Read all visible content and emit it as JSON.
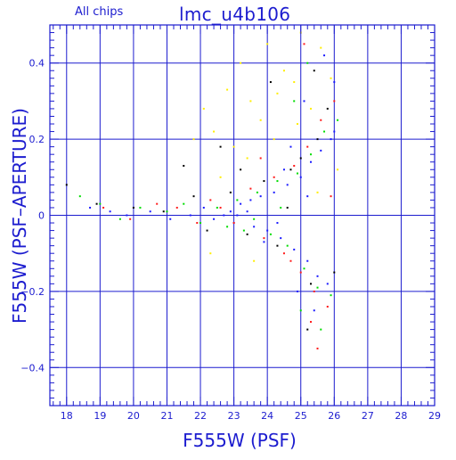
{
  "chart_data": {
    "type": "scatter",
    "title": "lmc_u4b106",
    "subtitle": "All chips",
    "xlabel": "F555W (PSF)",
    "ylabel": "F555W (PSF–APERTURE)",
    "xlim": [
      17.5,
      29.0
    ],
    "ylim": [
      -0.5,
      0.5
    ],
    "x_ticks": [
      18,
      19,
      20,
      21,
      22,
      23,
      24,
      25,
      26,
      27,
      28,
      29
    ],
    "x_tick_labels": [
      "18",
      "19",
      "20",
      "21",
      "22",
      "23",
      "24",
      "25",
      "26",
      "27",
      "28",
      "29"
    ],
    "y_ticks": [
      -0.4,
      -0.2,
      0,
      0.2,
      0.4
    ],
    "y_tick_labels": [
      "−0.4",
      "−0.2",
      "0",
      "0.2",
      "0.4"
    ],
    "grid": true,
    "legend": "none",
    "colors": {
      "axes": "#1c1ccf",
      "text": "#1c1ccf",
      "series": [
        "#1a1aff",
        "#00dd00",
        "#ff1a1a",
        "#000000",
        "#ffee00"
      ]
    },
    "series": [
      {
        "color": "#1a1aff",
        "points": [
          [
            18.7,
            0.02
          ],
          [
            19.3,
            0.01
          ],
          [
            19.8,
            0.0
          ],
          [
            20.5,
            0.01
          ],
          [
            21.1,
            -0.01
          ],
          [
            21.7,
            0.0
          ],
          [
            22.1,
            0.02
          ],
          [
            22.4,
            -0.01
          ],
          [
            22.7,
            0.0
          ],
          [
            23.0,
            -0.02
          ],
          [
            23.2,
            0.03
          ],
          [
            23.4,
            0.01
          ],
          [
            23.6,
            -0.03
          ],
          [
            23.8,
            0.05
          ],
          [
            24.0,
            -0.04
          ],
          [
            24.2,
            0.06
          ],
          [
            24.4,
            -0.06
          ],
          [
            24.6,
            0.08
          ],
          [
            24.8,
            -0.09
          ],
          [
            25.0,
            0.1
          ],
          [
            25.2,
            -0.12
          ],
          [
            25.3,
            0.14
          ],
          [
            25.5,
            -0.16
          ],
          [
            25.6,
            0.17
          ],
          [
            25.8,
            -0.18
          ],
          [
            25.9,
            0.2
          ],
          [
            26.0,
            0.22
          ],
          [
            25.1,
            0.3
          ],
          [
            24.9,
            -0.2
          ],
          [
            24.5,
            0.12
          ],
          [
            25.4,
            -0.25
          ],
          [
            23.9,
            -0.07
          ],
          [
            23.5,
            0.04
          ],
          [
            22.9,
            0.01
          ],
          [
            26.0,
            0.35
          ],
          [
            25.7,
            0.42
          ],
          [
            24.7,
            0.18
          ],
          [
            25.2,
            0.05
          ],
          [
            24.3,
            -0.02
          ],
          [
            23.1,
            0.0
          ]
        ]
      },
      {
        "color": "#00dd00",
        "points": [
          [
            18.4,
            0.05
          ],
          [
            19.0,
            0.03
          ],
          [
            19.6,
            -0.01
          ],
          [
            20.2,
            0.02
          ],
          [
            21.0,
            0.01
          ],
          [
            21.5,
            0.03
          ],
          [
            22.0,
            -0.02
          ],
          [
            22.5,
            0.02
          ],
          [
            22.8,
            -0.03
          ],
          [
            23.1,
            0.04
          ],
          [
            23.3,
            -0.04
          ],
          [
            23.7,
            0.06
          ],
          [
            24.1,
            -0.05
          ],
          [
            24.3,
            0.09
          ],
          [
            24.6,
            -0.08
          ],
          [
            24.9,
            0.11
          ],
          [
            25.1,
            -0.14
          ],
          [
            25.3,
            0.16
          ],
          [
            25.5,
            -0.19
          ],
          [
            25.7,
            0.22
          ],
          [
            25.9,
            -0.21
          ],
          [
            26.1,
            0.25
          ],
          [
            25.2,
            0.4
          ],
          [
            24.8,
            0.3
          ],
          [
            25.6,
            -0.3
          ],
          [
            25.0,
            -0.25
          ],
          [
            24.4,
            0.02
          ],
          [
            23.6,
            -0.01
          ]
        ]
      },
      {
        "color": "#ff1a1a",
        "points": [
          [
            19.1,
            0.02
          ],
          [
            19.9,
            -0.01
          ],
          [
            20.7,
            0.03
          ],
          [
            21.3,
            0.02
          ],
          [
            21.9,
            -0.02
          ],
          [
            22.3,
            0.04
          ],
          [
            22.6,
            0.02
          ],
          [
            23.0,
            -0.02
          ],
          [
            23.5,
            0.07
          ],
          [
            23.9,
            -0.06
          ],
          [
            24.2,
            0.1
          ],
          [
            24.5,
            -0.1
          ],
          [
            24.8,
            0.13
          ],
          [
            25.0,
            -0.15
          ],
          [
            25.2,
            0.18
          ],
          [
            25.4,
            -0.2
          ],
          [
            25.6,
            0.25
          ],
          [
            25.8,
            -0.24
          ],
          [
            26.0,
            0.3
          ],
          [
            25.3,
            -0.28
          ],
          [
            25.1,
            0.45
          ],
          [
            24.7,
            -0.12
          ],
          [
            23.8,
            0.15
          ],
          [
            25.9,
            0.05
          ],
          [
            25.5,
            -0.35
          ]
        ]
      },
      {
        "color": "#000000",
        "points": [
          [
            18.0,
            0.08
          ],
          [
            18.9,
            0.03
          ],
          [
            20.0,
            0.02
          ],
          [
            20.9,
            0.01
          ],
          [
            21.8,
            0.05
          ],
          [
            22.2,
            -0.04
          ],
          [
            22.9,
            0.06
          ],
          [
            23.4,
            -0.05
          ],
          [
            23.9,
            0.09
          ],
          [
            24.3,
            -0.08
          ],
          [
            24.7,
            0.12
          ],
          [
            25.0,
            0.15
          ],
          [
            25.3,
            -0.18
          ],
          [
            25.5,
            0.2
          ],
          [
            25.8,
            0.28
          ],
          [
            26.0,
            -0.15
          ],
          [
            24.1,
            0.35
          ],
          [
            25.4,
            0.38
          ],
          [
            25.2,
            -0.3
          ],
          [
            24.6,
            0.02
          ],
          [
            23.2,
            0.12
          ],
          [
            22.6,
            0.18
          ],
          [
            21.5,
            0.13
          ]
        ]
      },
      {
        "color": "#ffee00",
        "points": [
          [
            22.1,
            0.28
          ],
          [
            22.4,
            0.22
          ],
          [
            22.8,
            0.33
          ],
          [
            23.0,
            0.18
          ],
          [
            23.2,
            0.4
          ],
          [
            23.5,
            0.3
          ],
          [
            23.8,
            0.25
          ],
          [
            24.0,
            0.45
          ],
          [
            24.2,
            0.2
          ],
          [
            24.5,
            0.38
          ],
          [
            24.8,
            0.35
          ],
          [
            25.0,
            0.48
          ],
          [
            25.3,
            0.28
          ],
          [
            25.6,
            0.44
          ],
          [
            25.9,
            0.36
          ],
          [
            26.1,
            0.12
          ],
          [
            21.8,
            0.2
          ],
          [
            22.6,
            0.1
          ],
          [
            23.4,
            0.15
          ],
          [
            24.3,
            0.32
          ],
          [
            25.5,
            0.06
          ],
          [
            23.6,
            -0.12
          ],
          [
            22.3,
            -0.1
          ],
          [
            24.9,
            0.24
          ]
        ]
      }
    ]
  }
}
